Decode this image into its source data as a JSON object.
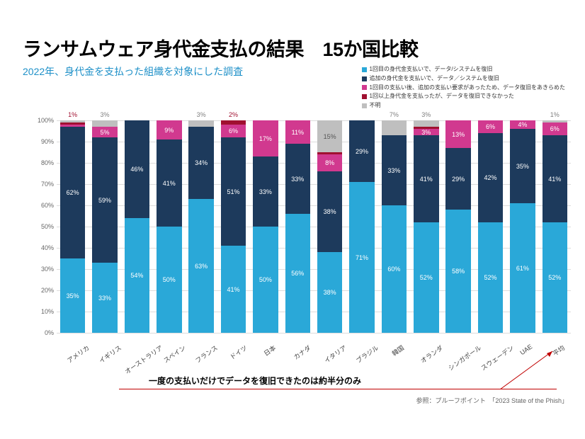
{
  "title": "ランサムウェア身代金支払の結果　15か国比較",
  "subtitle": "2022年、身代金を支払った組織を対象にした調査",
  "legend": {
    "items": [
      {
        "color": "#2aa8d8",
        "label": "1回目の身代金支払いで、データ/システムを復旧"
      },
      {
        "color": "#1d3a5c",
        "label": "追加の身代金を支払いで、データ／システムを復旧"
      },
      {
        "color": "#d1398f",
        "label": "1回目の支払い後、追加の支払い要求があったため、データ復旧をあきらめた"
      },
      {
        "color": "#a01030",
        "label": "1回以上身代金を支払ったが、データを復旧できなかった"
      },
      {
        "color": "#bfbfbf",
        "label": "不明"
      }
    ]
  },
  "chart": {
    "type": "stacked-bar",
    "ylim": [
      0,
      100
    ],
    "ytick_step": 10,
    "grid_color": "#dcdcdc",
    "background_color": "#ffffff",
    "series_colors": [
      "#2aa8d8",
      "#1d3a5c",
      "#d1398f",
      "#a01030",
      "#bfbfbf"
    ],
    "categories": [
      "アメリカ",
      "イギリス",
      "オーストラリア",
      "スペイン",
      "フランス",
      "ドイツ",
      "日本",
      "カナダ",
      "イタリア",
      "ブラジル",
      "韓国",
      "オランダ",
      "シンガポール",
      "スウェーデン",
      "UAE",
      "平均"
    ],
    "data": [
      {
        "values": [
          35,
          62,
          1,
          1,
          1
        ],
        "show": [
          {
            "i": 0,
            "t": "35%"
          },
          {
            "i": 1,
            "t": "62%"
          }
        ],
        "top": {
          "t": "1%",
          "c": "#a01030"
        }
      },
      {
        "values": [
          33,
          59,
          5,
          0,
          3
        ],
        "show": [
          {
            "i": 0,
            "t": "33%"
          },
          {
            "i": 1,
            "t": "59%"
          },
          {
            "i": 2,
            "t": "5%"
          }
        ],
        "top": {
          "t": "3%",
          "c": "#808080"
        }
      },
      {
        "values": [
          54,
          46,
          0,
          0,
          0
        ],
        "show": [
          {
            "i": 0,
            "t": "54%"
          },
          {
            "i": 1,
            "t": "46%"
          }
        ],
        "top": null
      },
      {
        "values": [
          50,
          41,
          9,
          0,
          0
        ],
        "show": [
          {
            "i": 0,
            "t": "50%"
          },
          {
            "i": 1,
            "t": "41%"
          },
          {
            "i": 2,
            "t": "9%"
          }
        ],
        "top": null
      },
      {
        "values": [
          63,
          34,
          0,
          0,
          3
        ],
        "show": [
          {
            "i": 0,
            "t": "63%"
          },
          {
            "i": 1,
            "t": "34%"
          }
        ],
        "top": {
          "t": "3%",
          "c": "#808080"
        }
      },
      {
        "values": [
          41,
          51,
          6,
          2,
          0
        ],
        "show": [
          {
            "i": 0,
            "t": "41%"
          },
          {
            "i": 1,
            "t": "51%"
          },
          {
            "i": 2,
            "t": "6%"
          }
        ],
        "top": {
          "t": "2%",
          "c": "#a01030"
        }
      },
      {
        "values": [
          50,
          33,
          17,
          0,
          0
        ],
        "show": [
          {
            "i": 0,
            "t": "50%"
          },
          {
            "i": 1,
            "t": "33%"
          },
          {
            "i": 2,
            "t": "17%"
          }
        ],
        "top": null
      },
      {
        "values": [
          56,
          33,
          11,
          0,
          0
        ],
        "show": [
          {
            "i": 0,
            "t": "56%"
          },
          {
            "i": 1,
            "t": "33%"
          },
          {
            "i": 2,
            "t": "11%"
          }
        ],
        "top": null
      },
      {
        "values": [
          38,
          38,
          8,
          1,
          15
        ],
        "show": [
          {
            "i": 0,
            "t": "38%"
          },
          {
            "i": 1,
            "t": "38%"
          },
          {
            "i": 2,
            "t": "8%"
          },
          {
            "i": 4,
            "t": "15%"
          }
        ],
        "top": null
      },
      {
        "values": [
          71,
          29,
          0,
          0,
          0
        ],
        "show": [
          {
            "i": 0,
            "t": "71%"
          },
          {
            "i": 1,
            "t": "29%"
          }
        ],
        "top": null
      },
      {
        "values": [
          60,
          33,
          0,
          0,
          7
        ],
        "show": [
          {
            "i": 0,
            "t": "60%"
          },
          {
            "i": 1,
            "t": "33%"
          }
        ],
        "top": {
          "t": "7%",
          "c": "#808080"
        }
      },
      {
        "values": [
          52,
          41,
          3,
          1,
          3
        ],
        "show": [
          {
            "i": 0,
            "t": "52%"
          },
          {
            "i": 1,
            "t": "41%"
          },
          {
            "i": 2,
            "t": "3%"
          }
        ],
        "top": {
          "t": "3%",
          "c": "#808080"
        }
      },
      {
        "values": [
          58,
          29,
          13,
          0,
          0
        ],
        "show": [
          {
            "i": 0,
            "t": "58%"
          },
          {
            "i": 1,
            "t": "29%"
          },
          {
            "i": 2,
            "t": "13%"
          }
        ],
        "top": null
      },
      {
        "values": [
          52,
          42,
          6,
          0,
          0
        ],
        "show": [
          {
            "i": 0,
            "t": "52%"
          },
          {
            "i": 1,
            "t": "42%"
          },
          {
            "i": 2,
            "t": "6%"
          }
        ],
        "top": null
      },
      {
        "values": [
          61,
          35,
          4,
          0,
          0
        ],
        "show": [
          {
            "i": 0,
            "t": "61%"
          },
          {
            "i": 1,
            "t": "35%"
          },
          {
            "i": 2,
            "t": "4%"
          }
        ],
        "top": null
      },
      {
        "values": [
          52,
          41,
          6,
          0,
          1
        ],
        "show": [
          {
            "i": 0,
            "t": "52%"
          },
          {
            "i": 1,
            "t": "41%"
          },
          {
            "i": 2,
            "t": "6%"
          }
        ],
        "top": {
          "t": "1%",
          "c": "#808080"
        }
      }
    ]
  },
  "annotation": "一度の支払いだけでデータを復旧できたのは約半分のみ",
  "source": "参照：プルーフポイント　「2023 State of the Phish」"
}
